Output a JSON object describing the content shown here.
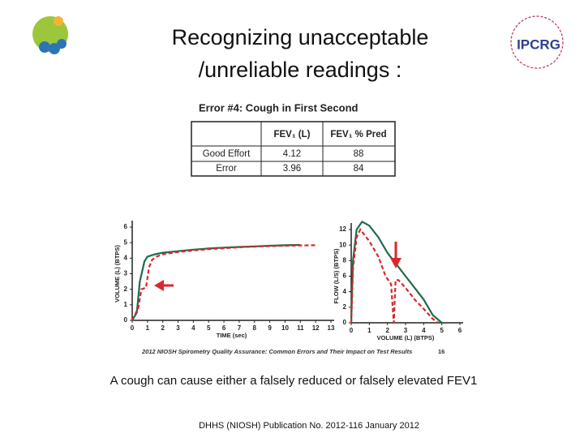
{
  "slide": {
    "title_lines": [
      "Recognizing unacceptable",
      "/unreliable readings :"
    ],
    "logo_right": "IPCRG",
    "figure_heading": "Error #4:  Cough in First Second",
    "table": {
      "header": [
        "FEV₁ (L)",
        "FEV₁ % Pred"
      ],
      "rows": [
        [
          "Good Effort",
          "4.12",
          "88"
        ],
        [
          "Error",
          "3.96",
          "84"
        ]
      ]
    },
    "figure_caption": "2012 NIOSH Spirometry Quality Assurance: Common Errors and Their Impact on Test Results",
    "figure_page": "16",
    "body_text": "A cough can cause either a falsely reduced or falsely elevated FEV1",
    "footer": "DHHS (NIOSH) Publication No. 2012-116 January 2012"
  },
  "chart_data": [
    {
      "type": "line",
      "x_label": "TIME (sec)",
      "y_label": "VOLUME (L) (BTPS)",
      "xlim": [
        0,
        13
      ],
      "ylim": [
        0,
        6
      ],
      "xticks": [
        0,
        1,
        2,
        3,
        4,
        5,
        6,
        7,
        8,
        9,
        10,
        11,
        12,
        13
      ],
      "yticks": [
        0,
        1,
        2,
        3,
        4,
        5,
        6
      ],
      "series": [
        {
          "color": "#1f6b4a",
          "dashed": false,
          "x": [
            0,
            0.3,
            0.5,
            0.8,
            1,
            1.5,
            2,
            3,
            4,
            5,
            6,
            7,
            8,
            9,
            10,
            11
          ],
          "values": [
            0,
            0.5,
            2.5,
            3.8,
            4.1,
            4.25,
            4.35,
            4.45,
            4.55,
            4.62,
            4.68,
            4.72,
            4.76,
            4.8,
            4.83,
            4.85
          ]
        },
        {
          "color": "#d9272e",
          "dashed": true,
          "x": [
            0,
            0.4,
            0.6,
            0.9,
            1.1,
            1.3,
            1.6,
            2,
            3,
            4,
            5,
            6,
            7,
            8,
            9,
            10,
            11,
            12
          ],
          "values": [
            0,
            0.8,
            2.0,
            2.1,
            3.4,
            3.9,
            4.1,
            4.25,
            4.4,
            4.5,
            4.58,
            4.64,
            4.7,
            4.74,
            4.78,
            4.8,
            4.82,
            4.83
          ]
        }
      ]
    },
    {
      "type": "line",
      "x_label": "VOLUME (L) (BTPS)",
      "y_label": "FLOW (L/S) (BTPS)",
      "xlim": [
        0,
        6
      ],
      "ylim": [
        0,
        12
      ],
      "xticks": [
        0,
        1,
        2,
        3,
        4,
        5,
        6
      ],
      "yticks": [
        0,
        2,
        4,
        6,
        8,
        10,
        12
      ],
      "series": [
        {
          "color": "#1f6b4a",
          "dashed": false,
          "x": [
            0,
            0.1,
            0.3,
            0.6,
            1,
            1.5,
            2,
            2.5,
            3,
            3.5,
            4,
            4.5,
            5
          ],
          "values": [
            0,
            8,
            12,
            13,
            12.5,
            11,
            9,
            7.5,
            6,
            4.5,
            3,
            1,
            0
          ]
        },
        {
          "color": "#d9272e",
          "dashed": true,
          "x": [
            0,
            0.1,
            0.3,
            0.5,
            1,
            1.5,
            1.9,
            2.2,
            2.35,
            2.45,
            2.6,
            3,
            3.5,
            4,
            4.5,
            4.8
          ],
          "values": [
            0,
            7,
            11,
            12,
            10.5,
            8.5,
            6,
            5,
            0,
            5.5,
            5.5,
            4.5,
            3,
            1.8,
            0.5,
            0
          ]
        }
      ]
    }
  ]
}
